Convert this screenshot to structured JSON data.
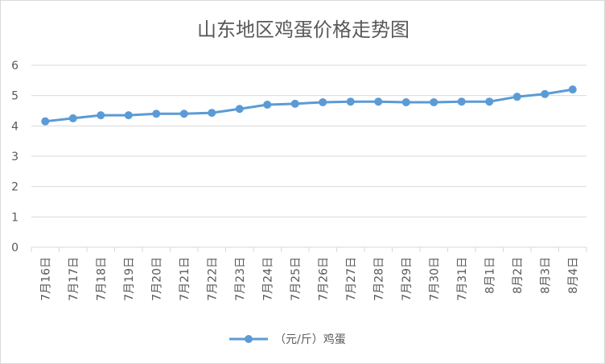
{
  "chart_data": {
    "type": "line",
    "title": "山东地区鸡蛋价格走势图",
    "xlabel": "",
    "ylabel": "",
    "categories": [
      "7月16日",
      "7月17日",
      "7月18日",
      "7月19日",
      "7月20日",
      "7月21日",
      "7月22日",
      "7月23日",
      "7月24日",
      "7月25日",
      "7月26日",
      "7月27日",
      "7月28日",
      "7月29日",
      "7月30日",
      "7月31日",
      "8月1日",
      "8月2日",
      "8月3日",
      "8月4日"
    ],
    "series": [
      {
        "name": "（元/斤）鸡蛋",
        "color": "#5b9bd5",
        "values": [
          4.15,
          4.25,
          4.35,
          4.35,
          4.4,
          4.4,
          4.43,
          4.56,
          4.7,
          4.73,
          4.78,
          4.8,
          4.8,
          4.78,
          4.78,
          4.8,
          4.8,
          4.96,
          5.05,
          5.2
        ]
      }
    ],
    "ylim": [
      0,
      6
    ],
    "yticks": [
      0,
      1,
      2,
      3,
      4,
      5,
      6
    ],
    "grid": true,
    "legend": "bottom"
  }
}
